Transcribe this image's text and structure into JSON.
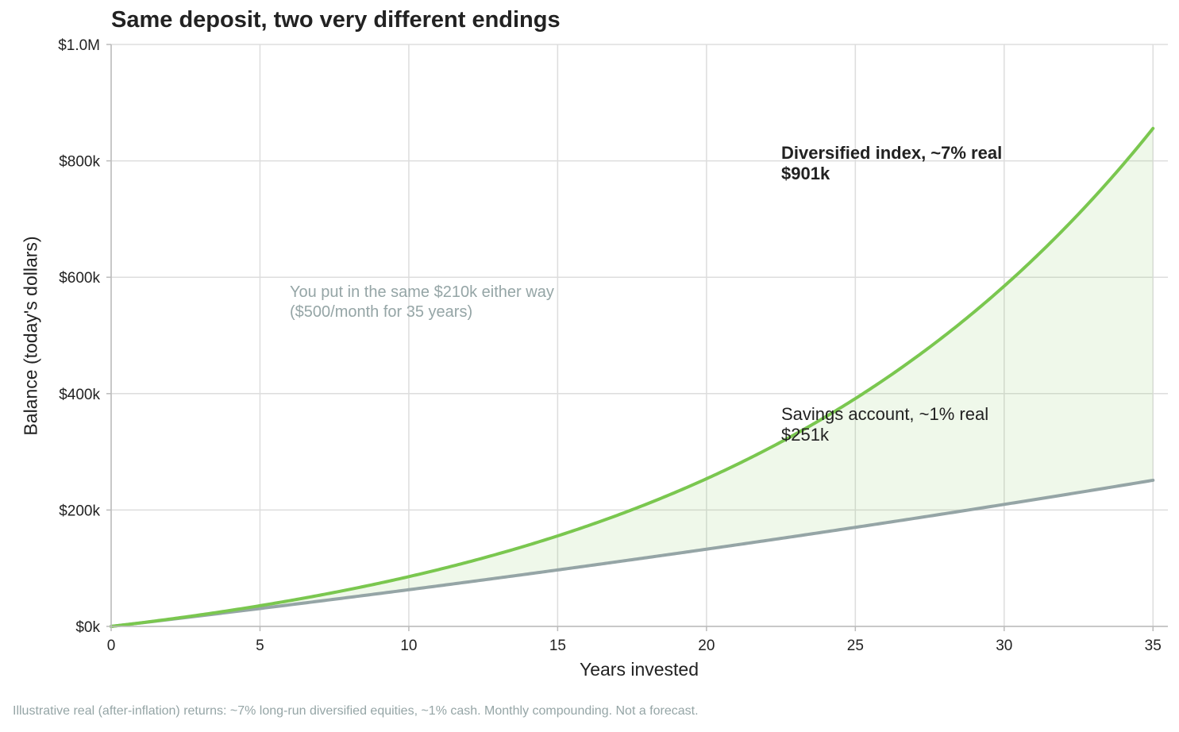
{
  "chart_data": {
    "type": "line",
    "title": "Same deposit, two very different endings",
    "xlabel": "Years invested",
    "ylabel": "Balance (today's dollars)",
    "xlim": [
      0,
      35.5
    ],
    "ylim": [
      0,
      1000000
    ],
    "x_ticks": [
      0,
      5,
      10,
      15,
      20,
      25,
      30,
      35
    ],
    "x_tick_labels": [
      "0",
      "5",
      "10",
      "15",
      "20",
      "25",
      "30",
      "35"
    ],
    "y_ticks": [
      0,
      200000,
      400000,
      600000,
      800000,
      1000000
    ],
    "y_tick_labels": [
      "$0k",
      "$200k",
      "$400k",
      "$600k",
      "$800k",
      "$1.0M"
    ],
    "grid": true,
    "monthly_deposit": 500,
    "years": 35,
    "x": [
      0,
      2.5,
      5,
      7.5,
      10,
      12.5,
      15,
      17.5,
      20,
      22.5,
      25,
      27.5,
      30,
      32.5,
      35
    ],
    "series": [
      {
        "color": "#7ac74f",
        "annual_real_rate": 0.07,
        "values": [
          0,
          16000,
          36000,
          60000,
          87000,
          119000,
          158000,
          206000,
          262000,
          330000,
          407000,
          500000,
          611000,
          741000,
          901000
        ]
      },
      {
        "color": "#95a5a6",
        "annual_real_rate": 0.01,
        "values": [
          0,
          15200,
          30800,
          46700,
          63000,
          79600,
          96600,
          114000,
          132000,
          150000,
          169000,
          188000,
          209000,
          229000,
          251000
        ]
      }
    ],
    "fill_between": {
      "color": "#7ac74f",
      "opacity": 0.12
    },
    "annotations": {
      "deposit_note": [
        "You put in the same $210k either way",
        "($500/month for 35 years)"
      ],
      "index_label": [
        "Diversified index, ~7% real",
        "$901k"
      ],
      "savings_label": [
        "Savings account, ~1% real",
        "$251k"
      ]
    }
  },
  "footnote": "Illustrative real (after-inflation) returns: ~7% long-run diversified equities, ~1% cash. Monthly compounding. Not a forecast."
}
